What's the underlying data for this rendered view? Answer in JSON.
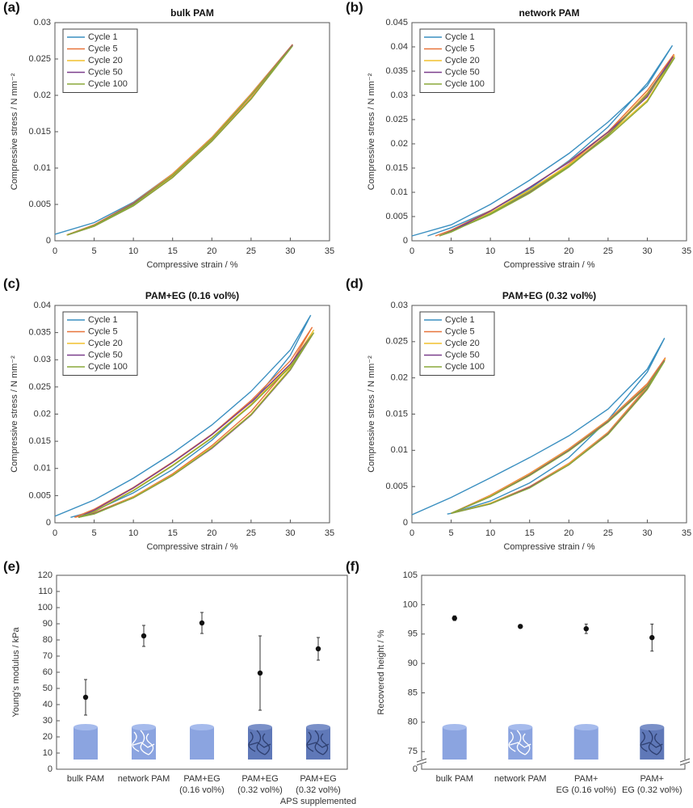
{
  "chart_data": [
    {
      "type": "line",
      "label": "(a)",
      "title": "bulk PAM",
      "x_label": "Compressive strain / %",
      "y_label": "Compressive stress / N mm⁻²",
      "xlim": [
        0,
        35
      ],
      "xticks": [
        0,
        5,
        10,
        15,
        20,
        25,
        30,
        35
      ],
      "ylim": [
        0,
        0.03
      ],
      "yticks": [
        0,
        0.005,
        0.01,
        0.015,
        0.02,
        0.025,
        0.03
      ],
      "legend": "upper left",
      "series": [
        {
          "name": "Cycle 1",
          "color": "#3a8fc0",
          "x": [
            0,
            5,
            10,
            15,
            20,
            25,
            30.3,
            25,
            20,
            15,
            10,
            5,
            1.5
          ],
          "values": [
            0.0009,
            0.0025,
            0.0053,
            0.0092,
            0.0142,
            0.0202,
            0.027,
            0.0196,
            0.0138,
            0.0088,
            0.0049,
            0.0021,
            0.0008
          ]
        },
        {
          "name": "Cycle 5",
          "color": "#e8743b",
          "x": [
            1.5,
            5,
            10,
            15,
            20,
            25,
            30.3,
            25,
            20,
            15,
            10,
            5,
            1.5
          ],
          "values": [
            0.0008,
            0.0022,
            0.0052,
            0.0092,
            0.0142,
            0.0202,
            0.027,
            0.0197,
            0.0139,
            0.0089,
            0.005,
            0.0021,
            0.0008
          ]
        },
        {
          "name": "Cycle 20",
          "color": "#f2c12e",
          "x": [
            1.5,
            5,
            10,
            15,
            20,
            25,
            30.3,
            25,
            20,
            15,
            10,
            5,
            1.5
          ],
          "values": [
            0.0008,
            0.0021,
            0.0051,
            0.0091,
            0.0141,
            0.0201,
            0.0269,
            0.0196,
            0.0138,
            0.0088,
            0.0049,
            0.002,
            0.0008
          ]
        },
        {
          "name": "Cycle 50",
          "color": "#7b3f8c",
          "x": [
            1.6,
            5,
            10,
            15,
            20,
            25,
            30.3,
            25,
            20,
            15,
            10,
            5,
            1.6
          ],
          "values": [
            0.0008,
            0.0021,
            0.0051,
            0.009,
            0.014,
            0.02,
            0.0269,
            0.0195,
            0.0137,
            0.0087,
            0.0048,
            0.002,
            0.0008
          ]
        },
        {
          "name": "Cycle 100",
          "color": "#8aa83a",
          "x": [
            1.6,
            5,
            10,
            15,
            20,
            25,
            30.3,
            25,
            20,
            15,
            10,
            5,
            1.6
          ],
          "values": [
            0.0008,
            0.0021,
            0.005,
            0.009,
            0.014,
            0.02,
            0.0268,
            0.0195,
            0.0137,
            0.0087,
            0.0048,
            0.002,
            0.0008
          ]
        }
      ]
    },
    {
      "type": "line",
      "label": "(b)",
      "title": "network PAM",
      "x_label": "Compressive strain / %",
      "y_label": "Compressive stress / N mm⁻²",
      "xlim": [
        0,
        35
      ],
      "xticks": [
        0,
        5,
        10,
        15,
        20,
        25,
        30,
        35
      ],
      "ylim": [
        0,
        0.045
      ],
      "yticks": [
        0,
        0.005,
        0.01,
        0.015,
        0.02,
        0.025,
        0.03,
        0.035,
        0.04,
        0.045
      ],
      "legend": "upper left",
      "series": [
        {
          "name": "Cycle 1",
          "color": "#3a8fc0",
          "x": [
            0,
            5,
            10,
            15,
            20,
            25,
            30,
            33.2,
            30,
            25,
            20,
            15,
            10,
            5,
            2
          ],
          "values": [
            0.001,
            0.0033,
            0.0075,
            0.0125,
            0.018,
            0.0245,
            0.032,
            0.0403,
            0.0325,
            0.0235,
            0.0165,
            0.0107,
            0.0062,
            0.0027,
            0.001
          ]
        },
        {
          "name": "Cycle 5",
          "color": "#e8743b",
          "x": [
            3,
            5,
            10,
            15,
            20,
            25,
            30,
            33.4,
            30,
            25,
            20,
            15,
            10,
            5,
            3
          ],
          "values": [
            0.001,
            0.0022,
            0.0062,
            0.011,
            0.0163,
            0.0225,
            0.0298,
            0.0385,
            0.031,
            0.0225,
            0.0158,
            0.0102,
            0.0058,
            0.0022,
            0.001
          ]
        },
        {
          "name": "Cycle 20",
          "color": "#f2c12e",
          "x": [
            3.5,
            5,
            10,
            15,
            20,
            25,
            30,
            33.5,
            30,
            25,
            20,
            15,
            10,
            5,
            3.5
          ],
          "values": [
            0.001,
            0.0019,
            0.0058,
            0.0105,
            0.0157,
            0.0218,
            0.029,
            0.0382,
            0.0305,
            0.0221,
            0.0155,
            0.01,
            0.0056,
            0.002,
            0.001
          ]
        },
        {
          "name": "Cycle 50",
          "color": "#7b3f8c",
          "x": [
            3.5,
            5,
            10,
            15,
            20,
            25,
            30,
            33.3,
            30,
            25,
            20,
            15,
            10,
            5,
            3.5
          ],
          "values": [
            0.001,
            0.002,
            0.0061,
            0.011,
            0.0162,
            0.0224,
            0.0297,
            0.038,
            0.0302,
            0.0219,
            0.0153,
            0.0099,
            0.0055,
            0.002,
            0.001
          ]
        },
        {
          "name": "Cycle 100",
          "color": "#8aa83a",
          "x": [
            3.5,
            5,
            10,
            15,
            20,
            25,
            30,
            33.5,
            30,
            25,
            20,
            15,
            10,
            5,
            3.5
          ],
          "values": [
            0.001,
            0.0018,
            0.0056,
            0.0102,
            0.0154,
            0.0215,
            0.0287,
            0.0378,
            0.0301,
            0.0218,
            0.0152,
            0.0098,
            0.0054,
            0.0019,
            0.001
          ]
        }
      ]
    },
    {
      "type": "line",
      "label": "(c)",
      "title": "PAM+EG (0.16 vol%)",
      "x_label": "Compressive strain / %",
      "y_label": "Compressive stress / N mm⁻²",
      "xlim": [
        0,
        35
      ],
      "xticks": [
        0,
        5,
        10,
        15,
        20,
        25,
        30,
        35
      ],
      "ylim": [
        0,
        0.04
      ],
      "yticks": [
        0,
        0.005,
        0.01,
        0.015,
        0.02,
        0.025,
        0.03,
        0.035,
        0.04
      ],
      "legend": "upper left",
      "series": [
        {
          "name": "Cycle 1",
          "color": "#3a8fc0",
          "x": [
            0,
            5,
            10,
            15,
            20,
            25,
            30,
            32.6,
            30,
            25,
            20,
            15,
            10,
            5,
            2
          ],
          "values": [
            0.0012,
            0.0042,
            0.0082,
            0.0128,
            0.018,
            0.0242,
            0.0318,
            0.0382,
            0.0308,
            0.0218,
            0.0152,
            0.0098,
            0.0055,
            0.0022,
            0.001
          ]
        },
        {
          "name": "Cycle 5",
          "color": "#e8743b",
          "x": [
            2.5,
            5,
            10,
            15,
            20,
            25,
            30,
            32.8,
            30,
            25,
            20,
            15,
            10,
            5,
            2.5
          ],
          "values": [
            0.001,
            0.0025,
            0.0065,
            0.0112,
            0.0163,
            0.0225,
            0.0298,
            0.036,
            0.029,
            0.0205,
            0.0142,
            0.009,
            0.0048,
            0.0018,
            0.001
          ]
        },
        {
          "name": "Cycle 20",
          "color": "#f2c12e",
          "x": [
            3,
            5,
            10,
            15,
            20,
            25,
            30,
            33,
            30,
            25,
            20,
            15,
            10,
            5,
            3
          ],
          "values": [
            0.001,
            0.0021,
            0.006,
            0.0106,
            0.0157,
            0.0218,
            0.029,
            0.0355,
            0.0284,
            0.02,
            0.0139,
            0.0088,
            0.0047,
            0.0017,
            0.001
          ]
        },
        {
          "name": "Cycle 50",
          "color": "#7b3f8c",
          "x": [
            3,
            5,
            10,
            15,
            20,
            25,
            30,
            32.9,
            30,
            25,
            20,
            15,
            10,
            5,
            3
          ],
          "values": [
            0.001,
            0.0023,
            0.0064,
            0.0111,
            0.0162,
            0.0222,
            0.0292,
            0.0348,
            0.0281,
            0.0198,
            0.0137,
            0.0087,
            0.0046,
            0.0017,
            0.001
          ]
        },
        {
          "name": "Cycle 100",
          "color": "#8aa83a",
          "x": [
            3,
            5,
            10,
            15,
            20,
            25,
            30,
            33,
            30,
            25,
            20,
            15,
            10,
            5,
            3
          ],
          "values": [
            0.001,
            0.002,
            0.0059,
            0.0105,
            0.0156,
            0.0216,
            0.0287,
            0.035,
            0.0282,
            0.0199,
            0.0138,
            0.0087,
            0.0046,
            0.0016,
            0.001
          ]
        }
      ]
    },
    {
      "type": "line",
      "label": "(d)",
      "title": "PAM+EG (0.32 vol%)",
      "x_label": "Compressive strain / %",
      "y_label": "Compressive stress / N mm⁻²",
      "xlim": [
        0,
        35
      ],
      "xticks": [
        0,
        5,
        10,
        15,
        20,
        25,
        30,
        35
      ],
      "ylim": [
        0,
        0.03
      ],
      "yticks": [
        0,
        0.005,
        0.01,
        0.015,
        0.02,
        0.025,
        0.03
      ],
      "legend": "upper left",
      "series": [
        {
          "name": "Cycle 1",
          "color": "#3a8fc0",
          "x": [
            0,
            5,
            10,
            15,
            20,
            25,
            30,
            32.2,
            30,
            25,
            20,
            15,
            10,
            5,
            4.5
          ],
          "values": [
            0.0011,
            0.0035,
            0.0062,
            0.009,
            0.012,
            0.0157,
            0.0212,
            0.0255,
            0.0208,
            0.0142,
            0.009,
            0.0055,
            0.003,
            0.0013,
            0.0012
          ]
        },
        {
          "name": "Cycle 5",
          "color": "#e8743b",
          "x": [
            5,
            10,
            15,
            20,
            25,
            30,
            32.3,
            30,
            25,
            20,
            15,
            10,
            5
          ],
          "values": [
            0.0013,
            0.0038,
            0.0068,
            0.0102,
            0.0142,
            0.0192,
            0.0228,
            0.0188,
            0.0125,
            0.0082,
            0.005,
            0.0027,
            0.0013
          ]
        },
        {
          "name": "Cycle 20",
          "color": "#f2c12e",
          "x": [
            5,
            10,
            15,
            20,
            25,
            30,
            32.3,
            30,
            25,
            20,
            15,
            10,
            5
          ],
          "values": [
            0.0013,
            0.0037,
            0.0067,
            0.0101,
            0.0141,
            0.019,
            0.0226,
            0.0186,
            0.0124,
            0.0081,
            0.0049,
            0.0027,
            0.0013
          ]
        },
        {
          "name": "Cycle 50",
          "color": "#7b3f8c",
          "x": [
            5,
            10,
            15,
            20,
            25,
            30,
            32.2,
            30,
            25,
            20,
            15,
            10,
            5
          ],
          "values": [
            0.0013,
            0.0036,
            0.0066,
            0.01,
            0.014,
            0.0189,
            0.0224,
            0.0185,
            0.0123,
            0.008,
            0.0049,
            0.0026,
            0.0013
          ]
        },
        {
          "name": "Cycle 100",
          "color": "#8aa83a",
          "x": [
            5,
            10,
            15,
            20,
            25,
            30,
            32.2,
            30,
            25,
            20,
            15,
            10,
            5
          ],
          "values": [
            0.0013,
            0.0036,
            0.0065,
            0.0099,
            0.0139,
            0.0188,
            0.0223,
            0.0184,
            0.0122,
            0.008,
            0.0048,
            0.0026,
            0.0013
          ]
        }
      ]
    },
    {
      "type": "errorbar",
      "label": "(e)",
      "y_label": "Young's modulus  /  kPa",
      "categories": [
        "bulk PAM",
        "network PAM",
        "PAM+EG\n(0.16 vol%)",
        "PAM+EG\n(0.32 vol%)",
        "PAM+EG\n(0.32 vol%)\nAPS supplemented"
      ],
      "values": [
        44.5,
        82.5,
        90.5,
        59.5,
        74.5
      ],
      "errors": [
        11,
        6.5,
        6.5,
        23,
        7
      ],
      "color": "#111111",
      "ylim": [
        0,
        120
      ],
      "yticks": [
        0,
        10,
        20,
        30,
        40,
        50,
        60,
        70,
        80,
        90,
        100,
        110,
        120
      ]
    },
    {
      "type": "errorbar",
      "label": "(f)",
      "y_label": "Recovered height / %",
      "categories": [
        "bulk PAM",
        "network PAM",
        "PAM+\nEG (0.16 vol%)",
        "PAM+\nEG (0.32 vol%)"
      ],
      "values": [
        97.7,
        96.3,
        95.9,
        94.4
      ],
      "errors": [
        0.4,
        0.3,
        0.8,
        2.3
      ],
      "color": "#111111",
      "ylim": [
        72,
        105
      ],
      "yticks": [
        0,
        75,
        80,
        85,
        90,
        95,
        100,
        105
      ],
      "axis_break": true
    }
  ]
}
